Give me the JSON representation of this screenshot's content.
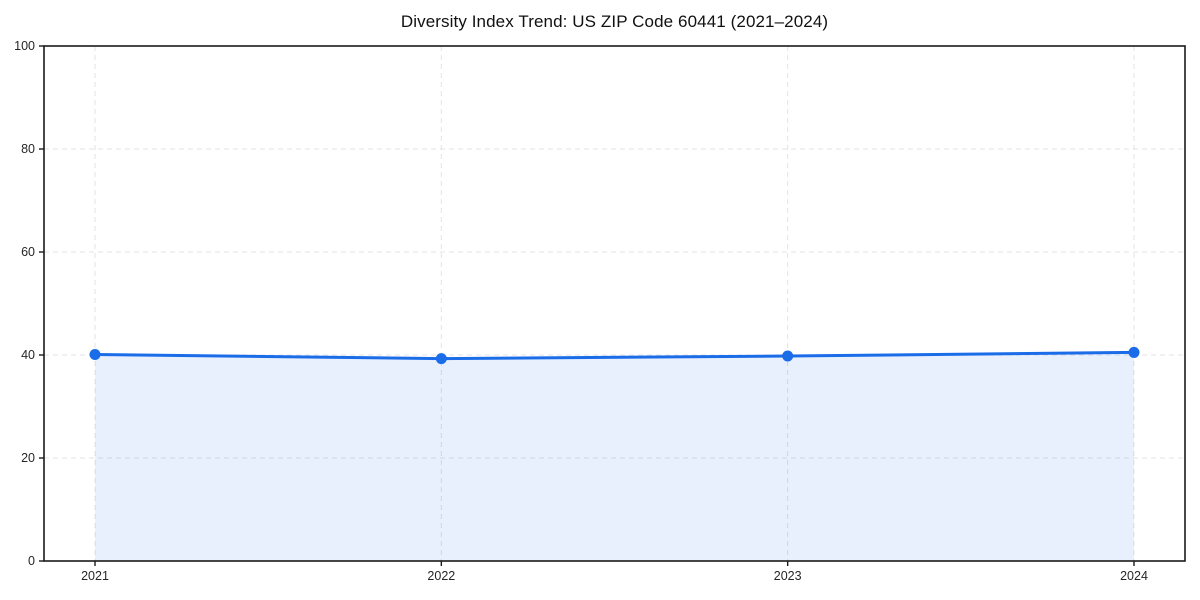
{
  "chart_data": {
    "type": "line",
    "title": "Diversity Index Trend: US ZIP Code 60441 (2021–2024)",
    "x": [
      2021,
      2022,
      2023,
      2024
    ],
    "x_tick_labels": [
      "2021",
      "2022",
      "2023",
      "2024"
    ],
    "series": [
      {
        "name": "Diversity Index",
        "values": [
          40.1,
          39.3,
          39.8,
          40.5
        ]
      }
    ],
    "xlabel": "",
    "ylabel": "",
    "ylim": [
      0,
      100
    ],
    "y_ticks": [
      0,
      20,
      40,
      60,
      80,
      100
    ],
    "y_tick_labels": [
      "0",
      "20",
      "40",
      "60",
      "80",
      "100"
    ],
    "grid": "dashed-both-axes",
    "legend": "none",
    "colors": {
      "line": "#1a6ce8",
      "marker": "#1a6ce8",
      "area_fill": "#1a6ce8",
      "area_fill_opacity": 0.1,
      "grid": "#e3e3e3",
      "spine": "#1a1a1a",
      "tick_text": "#262626",
      "background": "#ffffff"
    }
  }
}
